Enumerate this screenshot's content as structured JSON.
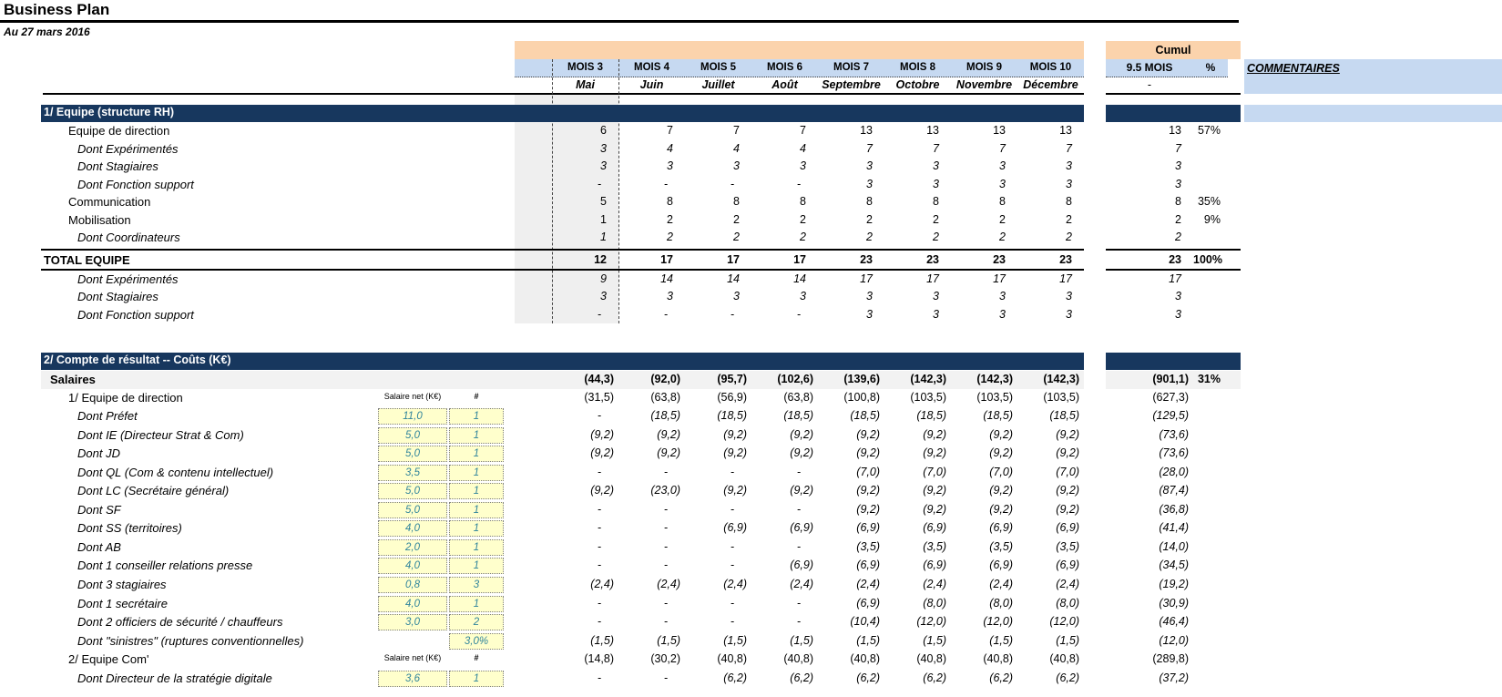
{
  "title": "Business Plan",
  "subtitle": "Au 27 mars 2016",
  "colors": {
    "navy": "#17375E",
    "orange_band": "#FBD3AC",
    "light_blue_band": "#C6D9F1",
    "input_yellow": "#FFFFCC",
    "input_text_blue": "#31859C",
    "gray_column": "#EFEFEF"
  },
  "header": {
    "cumul_label": "Cumul",
    "cumul_col": "9.5 MOIS",
    "pct_col": "%",
    "comments_col": "COMMENTAIRES",
    "cumul_dash": "-",
    "months": [
      {
        "code": "MOIS 3",
        "name": "Mai"
      },
      {
        "code": "MOIS 4",
        "name": "Juin"
      },
      {
        "code": "MOIS 5",
        "name": "Juillet"
      },
      {
        "code": "MOIS 6",
        "name": "Août"
      },
      {
        "code": "MOIS 7",
        "name": "Septembre"
      },
      {
        "code": "MOIS 8",
        "name": "Octobre"
      },
      {
        "code": "MOIS 9",
        "name": "Novembre"
      },
      {
        "code": "MOIS 10",
        "name": "Décembre"
      }
    ]
  },
  "section1": {
    "title": "1/ Equipe (structure RH)",
    "rows": [
      {
        "label": "Equipe de direction",
        "values": [
          "6",
          "7",
          "7",
          "7",
          "13",
          "13",
          "13",
          "13"
        ],
        "cumul": "13",
        "pct": "57%"
      },
      {
        "label": "Dont Expérimentés",
        "values": [
          "3",
          "4",
          "4",
          "4",
          "7",
          "7",
          "7",
          "7"
        ],
        "cumul": "7",
        "pct": ""
      },
      {
        "label": "Dont Stagiaires",
        "values": [
          "3",
          "3",
          "3",
          "3",
          "3",
          "3",
          "3",
          "3"
        ],
        "cumul": "3",
        "pct": ""
      },
      {
        "label": "Dont Fonction support",
        "values": [
          "-",
          "-",
          "-",
          "-",
          "3",
          "3",
          "3",
          "3"
        ],
        "cumul": "3",
        "pct": ""
      },
      {
        "label": "Communication",
        "values": [
          "5",
          "8",
          "8",
          "8",
          "8",
          "8",
          "8",
          "8"
        ],
        "cumul": "8",
        "pct": "35%"
      },
      {
        "label": "Mobilisation",
        "values": [
          "1",
          "2",
          "2",
          "2",
          "2",
          "2",
          "2",
          "2"
        ],
        "cumul": "2",
        "pct": "9%"
      },
      {
        "label": "Dont Coordinateurs",
        "values": [
          "1",
          "2",
          "2",
          "2",
          "2",
          "2",
          "2",
          "2"
        ],
        "cumul": "2",
        "pct": ""
      }
    ],
    "total_row": {
      "label": "TOTAL EQUIPE",
      "values": [
        "12",
        "17",
        "17",
        "17",
        "23",
        "23",
        "23",
        "23"
      ],
      "cumul": "23",
      "pct": "100%"
    },
    "total_subrows": [
      {
        "label": "Dont Expérimentés",
        "values": [
          "9",
          "14",
          "14",
          "14",
          "17",
          "17",
          "17",
          "17"
        ],
        "cumul": "17",
        "pct": ""
      },
      {
        "label": "Dont Stagiaires",
        "values": [
          "3",
          "3",
          "3",
          "3",
          "3",
          "3",
          "3",
          "3"
        ],
        "cumul": "3",
        "pct": ""
      },
      {
        "label": "Dont Fonction support",
        "values": [
          "-",
          "-",
          "-",
          "-",
          "3",
          "3",
          "3",
          "3"
        ],
        "cumul": "3",
        "pct": ""
      }
    ]
  },
  "section2": {
    "title": "2/ Compte de résultat -- Coûts (K€)",
    "input_header": {
      "salary": "Salaire net (K€)",
      "count": "#"
    },
    "salaires_row": {
      "label": "Salaires",
      "values": [
        "(44,3)",
        "(92,0)",
        "(95,7)",
        "(102,6)",
        "(139,6)",
        "(142,3)",
        "(142,3)",
        "(142,3)"
      ],
      "cumul": "(901,1)",
      "pct": "31%"
    },
    "rows": [
      {
        "label": "1/ Equipe de direction",
        "inputs": {
          "type": "labels"
        },
        "values": [
          "(31,5)",
          "(63,8)",
          "(56,9)",
          "(63,8)",
          "(100,8)",
          "(103,5)",
          "(103,5)",
          "(103,5)"
        ],
        "cumul": "(627,3)",
        "pct": ""
      },
      {
        "label": "Dont Préfet",
        "inputs": {
          "type": "boxes",
          "v1": "11,0",
          "v2": "1"
        },
        "values": [
          "-",
          "(18,5)",
          "(18,5)",
          "(18,5)",
          "(18,5)",
          "(18,5)",
          "(18,5)",
          "(18,5)"
        ],
        "cumul": "(129,5)",
        "pct": ""
      },
      {
        "label": "Dont IE (Directeur Strat & Com)",
        "inputs": {
          "type": "boxes",
          "v1": "5,0",
          "v2": "1"
        },
        "values": [
          "(9,2)",
          "(9,2)",
          "(9,2)",
          "(9,2)",
          "(9,2)",
          "(9,2)",
          "(9,2)",
          "(9,2)"
        ],
        "cumul": "(73,6)",
        "pct": ""
      },
      {
        "label": "Dont JD",
        "inputs": {
          "type": "boxes",
          "v1": "5,0",
          "v2": "1"
        },
        "values": [
          "(9,2)",
          "(9,2)",
          "(9,2)",
          "(9,2)",
          "(9,2)",
          "(9,2)",
          "(9,2)",
          "(9,2)"
        ],
        "cumul": "(73,6)",
        "pct": ""
      },
      {
        "label": "Dont QL (Com & contenu intellectuel)",
        "inputs": {
          "type": "boxes",
          "v1": "3,5",
          "v2": "1"
        },
        "values": [
          "-",
          "-",
          "-",
          "-",
          "(7,0)",
          "(7,0)",
          "(7,0)",
          "(7,0)"
        ],
        "cumul": "(28,0)",
        "pct": ""
      },
      {
        "label": "Dont LC (Secrétaire général)",
        "inputs": {
          "type": "boxes",
          "v1": "5,0",
          "v2": "1"
        },
        "values": [
          "(9,2)",
          "(23,0)",
          "(9,2)",
          "(9,2)",
          "(9,2)",
          "(9,2)",
          "(9,2)",
          "(9,2)"
        ],
        "cumul": "(87,4)",
        "pct": ""
      },
      {
        "label": "Dont SF",
        "inputs": {
          "type": "boxes",
          "v1": "5,0",
          "v2": "1"
        },
        "values": [
          "-",
          "-",
          "-",
          "-",
          "(9,2)",
          "(9,2)",
          "(9,2)",
          "(9,2)"
        ],
        "cumul": "(36,8)",
        "pct": ""
      },
      {
        "label": "Dont SS (territoires)",
        "inputs": {
          "type": "boxes",
          "v1": "4,0",
          "v2": "1"
        },
        "values": [
          "-",
          "-",
          "(6,9)",
          "(6,9)",
          "(6,9)",
          "(6,9)",
          "(6,9)",
          "(6,9)"
        ],
        "cumul": "(41,4)",
        "pct": ""
      },
      {
        "label": "Dont AB",
        "inputs": {
          "type": "boxes",
          "v1": "2,0",
          "v2": "1"
        },
        "values": [
          "-",
          "-",
          "-",
          "-",
          "(3,5)",
          "(3,5)",
          "(3,5)",
          "(3,5)"
        ],
        "cumul": "(14,0)",
        "pct": ""
      },
      {
        "label": "Dont 1 conseiller relations presse",
        "inputs": {
          "type": "boxes",
          "v1": "4,0",
          "v2": "1"
        },
        "values": [
          "-",
          "-",
          "-",
          "(6,9)",
          "(6,9)",
          "(6,9)",
          "(6,9)",
          "(6,9)"
        ],
        "cumul": "(34,5)",
        "pct": ""
      },
      {
        "label": "Dont 3 stagiaires",
        "inputs": {
          "type": "boxes",
          "v1": "0,8",
          "v2": "3"
        },
        "values": [
          "(2,4)",
          "(2,4)",
          "(2,4)",
          "(2,4)",
          "(2,4)",
          "(2,4)",
          "(2,4)",
          "(2,4)"
        ],
        "cumul": "(19,2)",
        "pct": ""
      },
      {
        "label": "Dont 1 secrétaire",
        "inputs": {
          "type": "boxes",
          "v1": "4,0",
          "v2": "1"
        },
        "values": [
          "-",
          "-",
          "-",
          "-",
          "(6,9)",
          "(8,0)",
          "(8,0)",
          "(8,0)"
        ],
        "cumul": "(30,9)",
        "pct": ""
      },
      {
        "label": "Dont 2 officiers de sécurité / chauffeurs",
        "inputs": {
          "type": "boxes",
          "v1": "3,0",
          "v2": "2"
        },
        "values": [
          "-",
          "-",
          "-",
          "-",
          "(10,4)",
          "(12,0)",
          "(12,0)",
          "(12,0)"
        ],
        "cumul": "(46,4)",
        "pct": ""
      },
      {
        "label": "Dont \"sinistres\" (ruptures conventionnelles)",
        "inputs": {
          "type": "box2",
          "v2": "3,0%"
        },
        "values": [
          "(1,5)",
          "(1,5)",
          "(1,5)",
          "(1,5)",
          "(1,5)",
          "(1,5)",
          "(1,5)",
          "(1,5)"
        ],
        "cumul": "(12,0)",
        "pct": ""
      },
      {
        "label": "2/ Equipe Com'",
        "inputs": {
          "type": "labels"
        },
        "values": [
          "(14,8)",
          "(30,2)",
          "(40,8)",
          "(40,8)",
          "(40,8)",
          "(40,8)",
          "(40,8)",
          "(40,8)"
        ],
        "cumul": "(289,8)",
        "pct": ""
      },
      {
        "label": "Dont Directeur de la stratégie digitale",
        "inputs": {
          "type": "boxes",
          "v1": "3,6",
          "v2": "1"
        },
        "values": [
          "-",
          "-",
          "(6,2)",
          "(6,2)",
          "(6,2)",
          "(6,2)",
          "(6,2)",
          "(6,2)"
        ],
        "cumul": "(37,2)",
        "pct": ""
      }
    ]
  }
}
